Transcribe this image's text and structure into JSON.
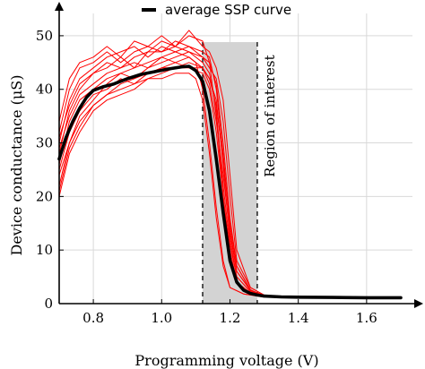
{
  "chart_data": {
    "type": "line",
    "xlabel": "Programming voltage (V)",
    "ylabel": "Device conductance (μS)",
    "xlim": [
      0.7,
      1.75
    ],
    "ylim": [
      0,
      55
    ],
    "xticks": [
      0.8,
      1.0,
      1.2,
      1.4,
      1.6
    ],
    "yticks": [
      0,
      10,
      20,
      30,
      40,
      50
    ],
    "grid": true,
    "legend": {
      "entries": [
        "average SSP curve"
      ],
      "placement": "top"
    },
    "colors": {
      "average": "#000000",
      "trials": "#ff0000",
      "region": "#d3d3d3"
    },
    "region_of_interest": {
      "x_start": 1.12,
      "x_end": 1.28,
      "label": "Region of interest"
    },
    "average_curve": {
      "name": "average SSP curve",
      "x": [
        0.7,
        0.72,
        0.74,
        0.76,
        0.78,
        0.8,
        0.83,
        0.86,
        0.9,
        0.94,
        0.98,
        1.02,
        1.06,
        1.08,
        1.1,
        1.12,
        1.14,
        1.16,
        1.18,
        1.2,
        1.22,
        1.24,
        1.26,
        1.28,
        1.3,
        1.35,
        1.4,
        1.5,
        1.6,
        1.7
      ],
      "y": [
        27,
        31,
        34,
        36.5,
        38.5,
        39.8,
        40.5,
        41,
        42,
        42.8,
        43.3,
        43.8,
        44.2,
        44.3,
        43.5,
        41.5,
        36,
        27,
        17,
        8,
        4,
        2.5,
        1.9,
        1.6,
        1.4,
        1.25,
        1.2,
        1.15,
        1.1,
        1.1
      ]
    },
    "trial_curves": [
      {
        "x": [
          0.7,
          0.73,
          0.76,
          0.8,
          0.84,
          0.88,
          0.92,
          0.96,
          1.0,
          1.04,
          1.08,
          1.1,
          1.12,
          1.14,
          1.16,
          1.18,
          1.2,
          1.24,
          1.3
        ],
        "y": [
          22,
          30,
          35,
          38,
          41,
          43,
          44,
          45,
          46,
          47,
          46,
          45,
          40,
          30,
          18,
          8,
          3,
          1.8,
          1.3
        ]
      },
      {
        "x": [
          0.7,
          0.73,
          0.76,
          0.8,
          0.84,
          0.88,
          0.92,
          0.96,
          1.0,
          1.04,
          1.08,
          1.12,
          1.14,
          1.16,
          1.18,
          1.2,
          1.22,
          1.26,
          1.3
        ],
        "y": [
          28,
          36,
          40,
          43,
          45,
          44,
          46,
          47,
          49,
          48,
          50,
          49,
          45,
          35,
          20,
          9,
          4,
          2,
          1.4
        ]
      },
      {
        "x": [
          0.7,
          0.73,
          0.76,
          0.8,
          0.84,
          0.88,
          0.92,
          0.96,
          1.0,
          1.04,
          1.08,
          1.12,
          1.14,
          1.16,
          1.18,
          1.2,
          1.22,
          1.26,
          1.3
        ],
        "y": [
          25,
          32,
          36,
          39,
          40,
          42,
          41,
          43,
          44,
          45,
          44,
          44,
          42,
          38,
          26,
          12,
          5,
          2.2,
          1.5
        ]
      },
      {
        "x": [
          0.7,
          0.73,
          0.76,
          0.8,
          0.84,
          0.88,
          0.92,
          0.96,
          1.0,
          1.04,
          1.08,
          1.12,
          1.14,
          1.16,
          1.18,
          1.2,
          1.22,
          1.26,
          1.3
        ],
        "y": [
          30,
          38,
          42,
          44,
          46,
          47,
          48,
          46,
          48,
          47,
          48,
          47,
          46,
          40,
          28,
          14,
          6,
          2.5,
          1.5
        ]
      },
      {
        "x": [
          0.7,
          0.73,
          0.76,
          0.8,
          0.84,
          0.88,
          0.92,
          0.96,
          1.0,
          1.04,
          1.08,
          1.12,
          1.14,
          1.16,
          1.18,
          1.2,
          1.22,
          1.26,
          1.3
        ],
        "y": [
          20,
          28,
          32,
          36,
          38,
          39,
          40,
          42,
          43,
          44,
          44,
          43,
          40,
          32,
          20,
          10,
          4,
          2,
          1.3
        ]
      },
      {
        "x": [
          0.7,
          0.73,
          0.76,
          0.8,
          0.84,
          0.88,
          0.92,
          0.96,
          1.0,
          1.04,
          1.08,
          1.12,
          1.14,
          1.16,
          1.18,
          1.2,
          1.22,
          1.26,
          1.3
        ],
        "y": [
          32,
          40,
          44,
          45,
          47,
          45,
          47,
          48,
          47,
          49,
          48,
          46,
          44,
          42,
          34,
          20,
          8,
          3,
          1.6
        ]
      },
      {
        "x": [
          0.7,
          0.73,
          0.76,
          0.8,
          0.84,
          0.88,
          0.92,
          0.96,
          1.0,
          1.04,
          1.08,
          1.12,
          1.14,
          1.16,
          1.18,
          1.2,
          1.22,
          1.26,
          1.3
        ],
        "y": [
          26,
          34,
          38,
          40,
          42,
          43,
          42,
          44,
          45,
          46,
          47,
          45,
          43,
          36,
          22,
          11,
          5,
          2.2,
          1.4
        ]
      },
      {
        "x": [
          0.7,
          0.73,
          0.76,
          0.8,
          0.84,
          0.88,
          0.92,
          0.96,
          1.0,
          1.04,
          1.08,
          1.1,
          1.12,
          1.14,
          1.16,
          1.18,
          1.2,
          1.24,
          1.3
        ],
        "y": [
          24,
          30,
          34,
          37,
          39,
          40,
          41,
          42,
          42,
          43,
          43,
          42,
          38,
          28,
          16,
          7,
          3,
          1.8,
          1.2
        ]
      },
      {
        "x": [
          0.7,
          0.73,
          0.76,
          0.8,
          0.84,
          0.88,
          0.92,
          0.96,
          1.0,
          1.04,
          1.08,
          1.12,
          1.14,
          1.16,
          1.18,
          1.2,
          1.22,
          1.26,
          1.3
        ],
        "y": [
          34,
          42,
          45,
          46,
          48,
          46,
          49,
          48,
          50,
          48,
          51,
          48,
          47,
          44,
          38,
          24,
          10,
          3,
          1.6
        ]
      },
      {
        "x": [
          0.7,
          0.73,
          0.76,
          0.8,
          0.84,
          0.88,
          0.92,
          0.96,
          1.0,
          1.04,
          1.08,
          1.12,
          1.14,
          1.16,
          1.18,
          1.2,
          1.22,
          1.26,
          1.3
        ],
        "y": [
          29,
          35,
          39,
          41,
          43,
          44,
          45,
          44,
          46,
          45,
          46,
          44,
          41,
          34,
          24,
          13,
          6,
          2.4,
          1.5
        ]
      },
      {
        "x": [
          0.7,
          0.73,
          0.76,
          0.8,
          0.84,
          0.88,
          0.92,
          0.96,
          1.0,
          1.04,
          1.08,
          1.12,
          1.14,
          1.16,
          1.18,
          1.2,
          1.22,
          1.26,
          1.3
        ],
        "y": [
          21,
          29,
          33,
          37,
          39,
          41,
          42,
          43,
          44,
          44,
          45,
          44,
          42,
          37,
          27,
          15,
          7,
          2.6,
          1.4
        ]
      },
      {
        "x": [
          0.7,
          0.73,
          0.76,
          0.8,
          0.84,
          0.88,
          0.92,
          0.96,
          1.0,
          1.04,
          1.08,
          1.12,
          1.14,
          1.16,
          1.18,
          1.2,
          1.22,
          1.26,
          1.3
        ],
        "y": [
          31,
          37,
          41,
          43,
          44,
          46,
          44,
          47,
          47,
          48,
          47,
          46,
          45,
          41,
          30,
          16,
          7,
          2.5,
          1.5
        ]
      }
    ]
  }
}
